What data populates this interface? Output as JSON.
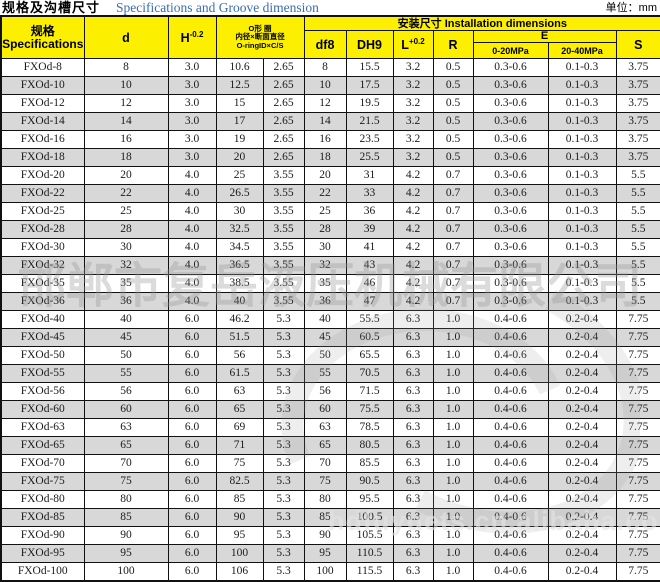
{
  "title": {
    "zh": "规格及沟槽尺寸",
    "en": "Specifications and Groove dimension",
    "unit": "单位：mm"
  },
  "colors": {
    "header_yellow": "#FCF000",
    "row_alt_gray": "#D8D8D8",
    "title_blue": "#3A6CB4",
    "border_black": "#111111"
  },
  "table": {
    "headers": {
      "spec_zh": "规格",
      "spec_en": "Specifications",
      "d": "d",
      "h_base": "H",
      "h_sup": "-0.2",
      "oring_line1": "O形 圈",
      "oring_line2": "内径×断面直径",
      "oring_line3": "O-ringID×C/S",
      "install": "安装尺寸 Installation dimensions",
      "df8": "df8",
      "dh9": "DH9",
      "l_base": "L",
      "l_sup": "+0.2",
      "r": "R",
      "e": "E",
      "e_low": "0-20MPa",
      "e_high": "20-40MPa",
      "s": "S"
    },
    "rows": [
      [
        "FXOd-8",
        "8",
        "3.0",
        "10.6",
        "2.65",
        "8",
        "15.5",
        "3.2",
        "0.5",
        "0.3-0.6",
        "0.1-0.3",
        "3.75"
      ],
      [
        "FXOd-10",
        "10",
        "3.0",
        "12.5",
        "2.65",
        "10",
        "17.5",
        "3.2",
        "0.5",
        "0.3-0.6",
        "0.1-0.3",
        "3.75"
      ],
      [
        "FXOd-12",
        "12",
        "3.0",
        "15",
        "2.65",
        "12",
        "19.5",
        "3.2",
        "0.5",
        "0.3-0.6",
        "0.1-0.3",
        "3.75"
      ],
      [
        "FXOd-14",
        "14",
        "3.0",
        "17",
        "2.65",
        "14",
        "21.5",
        "3.2",
        "0.5",
        "0.3-0.6",
        "0.1-0.3",
        "3.75"
      ],
      [
        "FXOd-16",
        "16",
        "3.0",
        "19",
        "2.65",
        "16",
        "23.5",
        "3.2",
        "0.5",
        "0.3-0.6",
        "0.1-0.3",
        "3.75"
      ],
      [
        "FXOd-18",
        "18",
        "3.0",
        "20",
        "2.65",
        "18",
        "25.5",
        "3.2",
        "0.5",
        "0.3-0.6",
        "0.1-0.3",
        "3.75"
      ],
      [
        "FXOd-20",
        "20",
        "4.0",
        "25",
        "3.55",
        "20",
        "31",
        "4.2",
        "0.7",
        "0.3-0.6",
        "0.1-0.3",
        "5.5"
      ],
      [
        "FXOd-22",
        "22",
        "4.0",
        "26.5",
        "3.55",
        "22",
        "33",
        "4.2",
        "0.7",
        "0.3-0.6",
        "0.1-0.3",
        "5.5"
      ],
      [
        "FXOd-25",
        "25",
        "4.0",
        "30",
        "3.55",
        "25",
        "36",
        "4.2",
        "0.7",
        "0.3-0.6",
        "0.1-0.3",
        "5.5"
      ],
      [
        "FXOd-28",
        "28",
        "4.0",
        "32.5",
        "3.55",
        "28",
        "39",
        "4.2",
        "0.7",
        "0.3-0.6",
        "0.1-0.3",
        "5.5"
      ],
      [
        "FXOd-30",
        "30",
        "4.0",
        "34.5",
        "3.55",
        "30",
        "41",
        "4.2",
        "0.7",
        "0.3-0.6",
        "0.1-0.3",
        "5.5"
      ],
      [
        "FXOd-32",
        "32",
        "4.0",
        "36.5",
        "3.55",
        "32",
        "43",
        "4.2",
        "0.7",
        "0.3-0.6",
        "0.1-0.3",
        "5.5"
      ],
      [
        "FXOd-35",
        "35",
        "4.0",
        "38.5",
        "3.55",
        "35",
        "46",
        "4.2",
        "0.7",
        "0.3-0.6",
        "0.1-0.3",
        "5.5"
      ],
      [
        "FXOd-36",
        "36",
        "4.0",
        "40",
        "3.55",
        "36",
        "47",
        "4.2",
        "0.7",
        "0.3-0.6",
        "0.1-0.3",
        "5.5"
      ],
      [
        "FXOd-40",
        "40",
        "6.0",
        "46.2",
        "5.3",
        "40",
        "55.5",
        "6.3",
        "1.0",
        "0.4-0.6",
        "0.2-0.4",
        "7.75"
      ],
      [
        "FXOd-45",
        "45",
        "6.0",
        "51.5",
        "5.3",
        "45",
        "60.5",
        "6.3",
        "1.0",
        "0.4-0.6",
        "0.2-0.4",
        "7.75"
      ],
      [
        "FXOd-50",
        "50",
        "6.0",
        "56",
        "5.3",
        "50",
        "65.5",
        "6.3",
        "1.0",
        "0.4-0.6",
        "0.2-0.4",
        "7.75"
      ],
      [
        "FXOd-55",
        "55",
        "6.0",
        "61.5",
        "5.3",
        "55",
        "70.5",
        "6.3",
        "1.0",
        "0.4-0.6",
        "0.2-0.4",
        "7.75"
      ],
      [
        "FXOd-56",
        "56",
        "6.0",
        "63",
        "5.3",
        "56",
        "71.5",
        "6.3",
        "1.0",
        "0.4-0.6",
        "0.2-0.4",
        "7.75"
      ],
      [
        "FXOd-60",
        "60",
        "6.0",
        "65",
        "5.3",
        "60",
        "75.5",
        "6.3",
        "1.0",
        "0.4-0.6",
        "0.2-0.4",
        "7.75"
      ],
      [
        "FXOd-63",
        "63",
        "6.0",
        "69",
        "5.3",
        "63",
        "78.5",
        "6.3",
        "1.0",
        "0.4-0.6",
        "0.2-0.4",
        "7.75"
      ],
      [
        "FXOd-65",
        "65",
        "6.0",
        "71",
        "5.3",
        "65",
        "80.5",
        "6.3",
        "1.0",
        "0.4-0.6",
        "0.2-0.4",
        "7.75"
      ],
      [
        "FXOd-70",
        "70",
        "6.0",
        "75",
        "5.3",
        "70",
        "85.5",
        "6.3",
        "1.0",
        "0.4-0.6",
        "0.2-0.4",
        "7.75"
      ],
      [
        "FXOd-75",
        "75",
        "6.0",
        "82.5",
        "5.3",
        "75",
        "90.5",
        "6.3",
        "1.0",
        "0.4-0.6",
        "0.2-0.4",
        "7.75"
      ],
      [
        "FXOd-80",
        "80",
        "6.0",
        "85",
        "5.3",
        "80",
        "95.5",
        "6.3",
        "1.0",
        "0.4-0.6",
        "0.2-0.4",
        "7.75"
      ],
      [
        "FXOd-85",
        "85",
        "6.0",
        "90",
        "5.3",
        "85",
        "100.5",
        "6.3",
        "1.0",
        "0.4-0.6",
        "0.2-0.4",
        "7.75"
      ],
      [
        "FXOd-90",
        "90",
        "6.0",
        "95",
        "5.3",
        "90",
        "105.5",
        "6.3",
        "1.0",
        "0.4-0.6",
        "0.2-0.4",
        "7.75"
      ],
      [
        "FXOd-95",
        "95",
        "6.0",
        "100",
        "5.3",
        "95",
        "110.5",
        "6.3",
        "1.0",
        "0.4-0.6",
        "0.2-0.4",
        "7.75"
      ],
      [
        "FXOd-100",
        "100",
        "6.0",
        "106",
        "5.3",
        "100",
        "115.5",
        "6.3",
        "1.0",
        "0.4-0.6",
        "0.2-0.4",
        "7.75"
      ]
    ]
  },
  "watermarks": {
    "company": "邯郸市复岳液压机械有限公司",
    "url": "hdfuyuets.cn.alibaba.com"
  }
}
